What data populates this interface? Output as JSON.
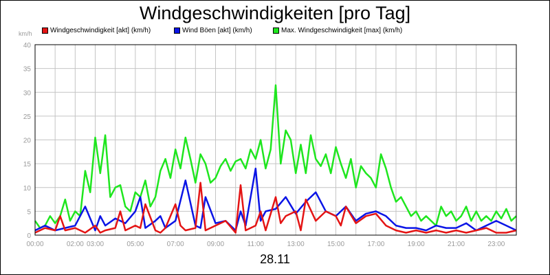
{
  "header": {
    "title": "Windgeschwindigkeiten [pro Tag]"
  },
  "footer": {
    "date": "28.11"
  },
  "colors": {
    "akt": "#e41414",
    "boeen": "#0a14e6",
    "max": "#1ee61e",
    "grid": "#c4c4c4"
  },
  "chart_data": {
    "type": "line",
    "title": "Windgeschwindigkeiten [pro Tag]",
    "unit_label": "km/h",
    "xlabel": "28.11",
    "ylabel": "",
    "ylim": [
      0,
      40
    ],
    "yticks": [
      "0",
      "5",
      "10",
      "15",
      "20",
      "25",
      "30",
      "35",
      "40"
    ],
    "xlim": [
      0,
      24
    ],
    "xticks": [
      "00:00",
      "02:00",
      "03:00",
      "05:00",
      "07:00",
      "09:00",
      "11:00",
      "13:00",
      "15:00",
      "17:00",
      "19:00",
      "21:00",
      "23:00"
    ],
    "xtick_hours": [
      0,
      2,
      3,
      5,
      7,
      9,
      11,
      13,
      15,
      17,
      19,
      21,
      23
    ],
    "grid": true,
    "legend_position": "top",
    "series": [
      {
        "name": "Windgeschwindigkeit [akt] (km/h)",
        "color_key": "akt",
        "x": [
          0,
          0.5,
          1,
          1.25,
          1.5,
          2,
          2.5,
          3,
          3.25,
          3.5,
          4,
          4.25,
          4.5,
          5,
          5.25,
          5.5,
          6,
          6.25,
          6.5,
          7,
          7.25,
          7.5,
          8,
          8.25,
          8.5,
          8.75,
          9,
          9.5,
          10,
          10.25,
          10.5,
          11,
          11.25,
          11.5,
          12,
          12.25,
          12.5,
          13,
          13.25,
          13.5,
          14,
          14.5,
          15,
          15.25,
          15.5,
          16,
          16.5,
          17,
          17.5,
          18,
          18.5,
          19,
          19.5,
          20,
          20.5,
          21,
          21.5,
          22,
          22.5,
          23,
          23.5,
          24
        ],
        "values": [
          0.5,
          1.5,
          1,
          4,
          1,
          1.5,
          0.5,
          2,
          0.5,
          1,
          1.5,
          5,
          1,
          2,
          1.5,
          6.5,
          1,
          0.5,
          1.5,
          6.5,
          2,
          1,
          1.5,
          11,
          1,
          1.5,
          2,
          3,
          0.5,
          10.5,
          1,
          2,
          5,
          1,
          8,
          2.5,
          4,
          5,
          1,
          7.5,
          3,
          5,
          4,
          2,
          6,
          2.5,
          4,
          4.5,
          2,
          1,
          0.5,
          1,
          0.5,
          1,
          0.5,
          1,
          0.5,
          1,
          1.5,
          0.5,
          0.5,
          1
        ]
      },
      {
        "name": "Wind Böen [akt] (km/h)",
        "color_key": "boeen",
        "x": [
          0,
          0.5,
          1,
          1.5,
          2,
          2.5,
          3,
          3.25,
          3.5,
          4,
          4.5,
          5,
          5.25,
          5.5,
          6,
          6.25,
          6.5,
          7,
          7.5,
          8,
          8.25,
          8.5,
          9,
          9.5,
          10,
          10.25,
          10.5,
          11,
          11.25,
          11.5,
          12,
          12.5,
          13,
          13.5,
          14,
          14.5,
          15,
          15.5,
          16,
          16.5,
          17,
          17.5,
          18,
          18.5,
          19,
          19.5,
          20,
          20.5,
          21,
          21.5,
          22,
          22.5,
          23,
          23.5,
          24
        ],
        "values": [
          1,
          2,
          1,
          1.5,
          2,
          6,
          1,
          4,
          2,
          3.5,
          2.5,
          5,
          8,
          1.5,
          3,
          4,
          1.5,
          3,
          11.5,
          2,
          1.5,
          8,
          2.5,
          3,
          1,
          5,
          2,
          14,
          3,
          5,
          5.5,
          8,
          4.5,
          7,
          9,
          5,
          4,
          6,
          3,
          4.5,
          5,
          4,
          2,
          1.5,
          1.5,
          1,
          2,
          1.5,
          1.5,
          2.5,
          1,
          2,
          3,
          2,
          1
        ]
      },
      {
        "name": "Max. Windgeschwindigkeit [max] (km/h)",
        "color_key": "max",
        "x": [
          0,
          0.25,
          0.5,
          0.75,
          1,
          1.25,
          1.5,
          1.75,
          2,
          2.25,
          2.5,
          2.75,
          3,
          3.25,
          3.5,
          3.75,
          4,
          4.25,
          4.5,
          4.75,
          5,
          5.25,
          5.5,
          5.75,
          6,
          6.25,
          6.5,
          6.75,
          7,
          7.25,
          7.5,
          7.75,
          8,
          8.25,
          8.5,
          8.75,
          9,
          9.25,
          9.5,
          9.75,
          10,
          10.25,
          10.5,
          10.75,
          11,
          11.25,
          11.5,
          11.75,
          12,
          12.25,
          12.5,
          12.75,
          13,
          13.25,
          13.5,
          13.75,
          14,
          14.25,
          14.5,
          14.75,
          15,
          15.25,
          15.5,
          15.75,
          16,
          16.25,
          16.5,
          16.75,
          17,
          17.25,
          17.5,
          17.75,
          18,
          18.25,
          18.5,
          18.75,
          19,
          19.25,
          19.5,
          19.75,
          20,
          20.25,
          20.5,
          20.75,
          21,
          21.25,
          21.5,
          21.75,
          22,
          22.25,
          22.5,
          22.75,
          23,
          23.25,
          23.5,
          23.75,
          24
        ],
        "values": [
          3,
          1.5,
          2,
          4,
          2.5,
          4,
          7.5,
          3,
          5,
          4,
          13.5,
          9,
          20.5,
          13,
          21,
          8,
          10,
          10.5,
          6,
          5,
          9,
          8,
          11.5,
          6,
          8,
          13.5,
          16,
          12,
          18,
          14,
          20.5,
          16,
          11,
          17,
          15,
          11,
          12,
          14.5,
          16,
          13.5,
          15.5,
          16,
          14,
          18,
          16,
          20,
          14,
          18,
          31.5,
          15,
          22,
          20,
          13,
          19,
          13,
          21,
          16,
          14.5,
          17,
          13,
          18.5,
          15,
          12,
          16,
          10,
          14.5,
          13,
          12,
          10,
          17,
          14,
          10,
          7,
          8,
          6,
          4,
          5,
          3,
          4,
          3,
          2,
          6,
          4,
          5,
          3,
          4,
          6,
          3,
          5,
          3,
          4,
          3,
          5,
          3.5,
          5.5,
          3,
          4
        ]
      }
    ]
  }
}
